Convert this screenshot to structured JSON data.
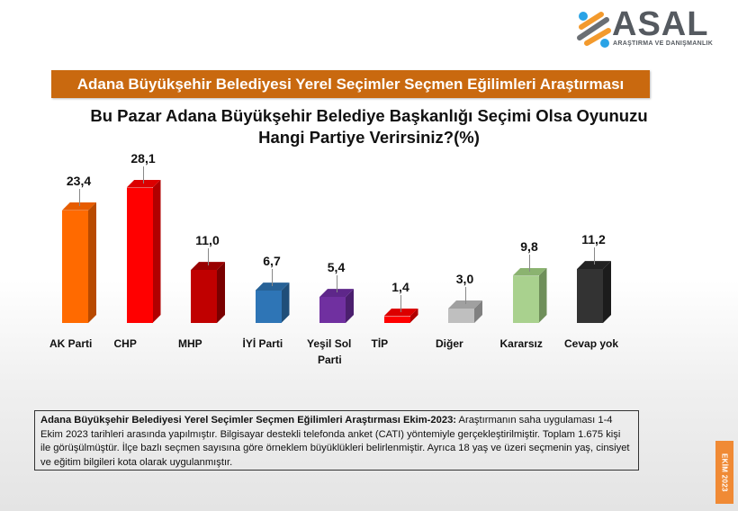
{
  "logo": {
    "name": "ASAL",
    "tagline": "ARAŞTIRMA VE DANIŞMANLIK",
    "colors": {
      "blue": "#2aa3e6",
      "orange": "#f39a2d",
      "gray": "#555a60"
    }
  },
  "banner": {
    "title": "Adana Büyükşehir Belediyesi Yerel Seçimler Seçmen Eğilimleri Araştırması",
    "color": "#c9690f"
  },
  "question": {
    "line1": "Bu Pazar Adana Büyükşehir Belediye Başkanlığı Seçimi Olsa Oyunuzu",
    "line2": "Hangi Partiye Verirsiniz?(%)"
  },
  "chart_data": {
    "type": "bar",
    "title": "Bu Pazar Adana Büyükşehir Belediye Başkanlığı Seçimi Olsa Oyunuzu Hangi Partiye Verirsiniz?(%)",
    "xlabel": "",
    "ylabel": "%",
    "categories": [
      "AK Parti",
      "CHP",
      "MHP",
      "İYİ Parti",
      "Yeşil Sol Parti",
      "TİP",
      "Diğer",
      "Kararsız",
      "Cevap yok"
    ],
    "values": [
      23.4,
      28.1,
      11.0,
      6.7,
      5.4,
      1.4,
      3.0,
      9.8,
      11.2
    ],
    "value_labels": [
      "23,4",
      "28,1",
      "11,0",
      "6,7",
      "5,4",
      "1,4",
      "3,0",
      "9,8",
      "11,2"
    ],
    "colors": [
      "#ff6a00",
      "#ff0000",
      "#c00000",
      "#2e75b6",
      "#7030a0",
      "#ff0000",
      "#bfbfbf",
      "#a9d18e",
      "#333333"
    ],
    "side_colors": [
      "#b84a00",
      "#b00000",
      "#7a0000",
      "#1f4e79",
      "#4b1f6e",
      "#b00000",
      "#808080",
      "#6f8f5a",
      "#1c1c1c"
    ],
    "grid": false,
    "legend": "none",
    "style": "3d-column"
  },
  "note": {
    "bold_lead": "Adana Büyükşehir Belediyesi Yerel Seçimler Seçmen Eğilimleri Araştırması Ekim-2023:",
    "text": " Araştırmanın saha uygulaması 1-4 Ekim 2023 tarihleri arasında yapılmıştır. Bilgisayar destekli telefonda anket (CATI) yöntemiyle gerçekleştirilmiştir. Toplam 1.675 kişi ile görüşülmüştür. İlçe bazlı seçmen sayısına göre örneklem büyüklükleri belirlenmiştir. Ayrıca 18 yaş ve üzeri seçmenin yaş, cinsiyet ve eğitim bilgileri kota olarak uygulanmıştır."
  },
  "side_tag": {
    "label": "EKİM 2023",
    "color": "#f08a35"
  }
}
